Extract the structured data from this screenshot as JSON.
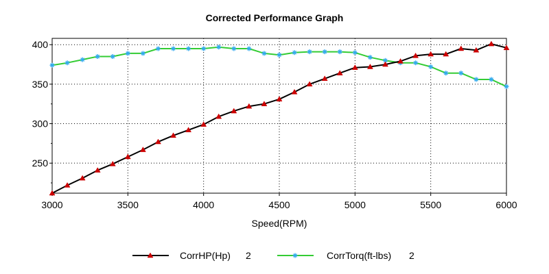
{
  "chart_data": {
    "type": "line",
    "title": "Corrected Performance Graph",
    "xlabel": "Speed(RPM)",
    "ylabel": "",
    "xlim": [
      3000,
      6000
    ],
    "ylim": [
      212,
      408
    ],
    "x_ticks": [
      "3000",
      "3500",
      "4000",
      "4500",
      "5000",
      "5500",
      "6000"
    ],
    "y_ticks": [
      "250",
      "300",
      "350",
      "400"
    ],
    "grid": true,
    "legend_position": "bottom",
    "x": [
      3000,
      3100,
      3200,
      3300,
      3400,
      3500,
      3600,
      3700,
      3800,
      3900,
      4000,
      4100,
      4200,
      4300,
      4400,
      4500,
      4600,
      4700,
      4800,
      4900,
      5000,
      5100,
      5200,
      5300,
      5400,
      5500,
      5600,
      5700,
      5800,
      5900,
      6000
    ],
    "series": [
      {
        "name": "CorrHP(Hp)",
        "run": "2",
        "color": "#000000",
        "marker_color": "#cc0000",
        "marker": "triangle",
        "values": [
          212,
          222,
          231,
          241,
          249,
          258,
          267,
          277,
          285,
          292,
          299,
          309,
          316,
          322,
          325,
          331,
          340,
          350,
          357,
          364,
          371,
          372,
          375,
          379,
          386,
          388,
          388,
          395,
          393,
          401,
          396
        ]
      },
      {
        "name": "CorrTorq(ft-lbs)",
        "run": "2",
        "color": "#33cc33",
        "marker_color": "#33aaee",
        "marker": "star",
        "values": [
          374,
          377,
          381,
          385,
          385,
          389,
          389,
          395,
          395,
          395,
          395,
          397,
          395,
          395,
          389,
          387,
          390,
          391,
          391,
          391,
          390,
          384,
          380,
          377,
          377,
          372,
          364,
          364,
          356,
          356,
          347
        ]
      }
    ]
  }
}
